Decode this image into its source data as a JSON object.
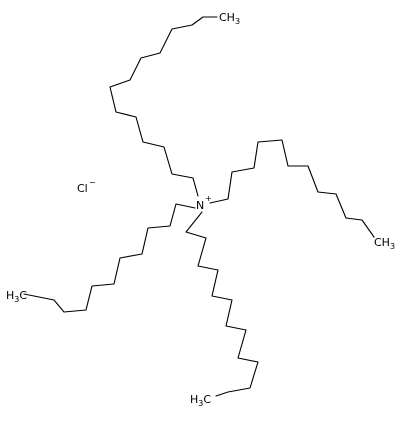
{
  "molecule": {
    "center_atom": {
      "symbol": "N",
      "charge": "+"
    },
    "counter_ion": {
      "symbol": "Cl",
      "charge": "−"
    },
    "chains": [
      {
        "terminal": {
          "main": "CH",
          "sub": "3",
          "style": "suffix"
        }
      },
      {
        "terminal": {
          "main": "CH",
          "sub": "3",
          "style": "suffix"
        }
      },
      {
        "terminal": {
          "main": "CH",
          "sub": "3",
          "style": "suffix"
        }
      },
      {
        "terminal": {
          "main": "CH",
          "sub": "3",
          "style": "suffix"
        }
      }
    ]
  }
}
